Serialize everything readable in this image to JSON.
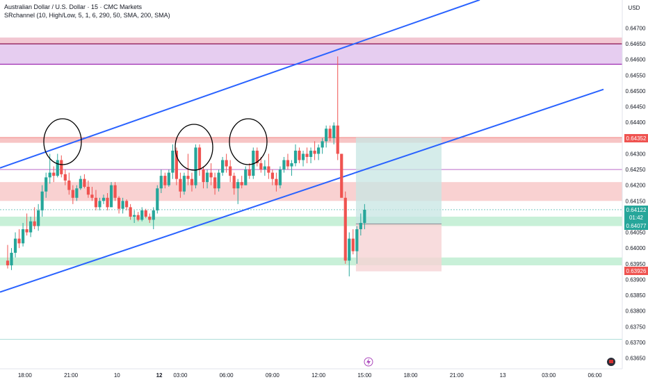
{
  "header": {
    "symbol_line": "Australian Dollar / U.S. Dollar · 15 · CMC Markets",
    "indicator_line": "SRchannel (10, High/Low, 5, 1, 6, 290, 50, SMA, 200, SMA)",
    "currency_label": "USD"
  },
  "price_tags": {
    "level_1": "0.64352",
    "last_price": "0.64122",
    "countdown": "01:42",
    "level_2": "0.64077",
    "level_3": "0.63926"
  },
  "footer": {
    "timeframe_icon": "lightning-icon",
    "settings_icon": "flag-icon"
  },
  "colors": {
    "up": "#26a69a",
    "down": "#ef5350",
    "channel": "#2962ff",
    "resistance_zone": "#f7c5c5",
    "support_zone": "#c8f0d8",
    "purple_zone": "#e6cdf0",
    "purple_line": "#9c27b0",
    "long_target": "#c7e6e3",
    "long_stop": "#f6d3d4"
  },
  "chart_data": {
    "type": "candlestick",
    "y_axis": {
      "ticks": [
        "0.64700",
        "0.64650",
        "0.64600",
        "0.64550",
        "0.64500",
        "0.64450",
        "0.64400",
        "0.64350",
        "0.64300",
        "0.64250",
        "0.64200",
        "0.64150",
        "0.64100",
        "0.64050",
        "0.64000",
        "0.63950",
        "0.63900",
        "0.63850",
        "0.63800",
        "0.63750",
        "0.63700",
        "0.63650"
      ],
      "range": [
        0.6364,
        0.6474
      ]
    },
    "x_axis": {
      "ticks": [
        {
          "label": "18:00",
          "bold": false,
          "bar": 4.5
        },
        {
          "label": "21:00",
          "bold": false,
          "bar": 16.5
        },
        {
          "label": "10",
          "bold": false,
          "bar": 28.5
        },
        {
          "label": "12",
          "bold": true,
          "bar": 39.5
        },
        {
          "label": "03:00",
          "bold": false,
          "bar": 45
        },
        {
          "label": "06:00",
          "bold": false,
          "bar": 57
        },
        {
          "label": "09:00",
          "bold": false,
          "bar": 69
        },
        {
          "label": "12:00",
          "bold": false,
          "bar": 81
        },
        {
          "label": "15:00",
          "bold": false,
          "bar": 93
        },
        {
          "label": "18:00",
          "bold": false,
          "bar": 105
        },
        {
          "label": "21:00",
          "bold": false,
          "bar": 117
        },
        {
          "label": "13",
          "bold": false,
          "bar": 129
        },
        {
          "label": "03:00",
          "bold": false,
          "bar": 141
        },
        {
          "label": "06:00",
          "bold": false,
          "bar": 153
        }
      ]
    },
    "candles_ohlc": [
      [
        0.6396,
        0.6401,
        0.63935,
        0.63945
      ],
      [
        0.63945,
        0.64,
        0.6393,
        0.63985
      ],
      [
        0.63985,
        0.6405,
        0.6397,
        0.6403
      ],
      [
        0.6403,
        0.6406,
        0.64,
        0.64015
      ],
      [
        0.64015,
        0.6408,
        0.64005,
        0.6406
      ],
      [
        0.6406,
        0.6411,
        0.6404,
        0.6405
      ],
      [
        0.6405,
        0.641,
        0.64035,
        0.64085
      ],
      [
        0.64085,
        0.6413,
        0.6406,
        0.6407
      ],
      [
        0.6407,
        0.6414,
        0.64055,
        0.6412
      ],
      [
        0.6412,
        0.642,
        0.641,
        0.6418
      ],
      [
        0.6418,
        0.6424,
        0.6416,
        0.64225
      ],
      [
        0.64225,
        0.643,
        0.64205,
        0.6424
      ],
      [
        0.6424,
        0.6426,
        0.6421,
        0.6423
      ],
      [
        0.6423,
        0.643,
        0.64225,
        0.6428
      ],
      [
        0.6428,
        0.64295,
        0.64225,
        0.64235
      ],
      [
        0.64235,
        0.6425,
        0.642,
        0.64215
      ],
      [
        0.64215,
        0.6424,
        0.6417,
        0.64185
      ],
      [
        0.64185,
        0.642,
        0.6414,
        0.6416
      ],
      [
        0.6416,
        0.642,
        0.6415,
        0.6419
      ],
      [
        0.6419,
        0.6423,
        0.64185,
        0.6422
      ],
      [
        0.6422,
        0.64235,
        0.6419,
        0.64195
      ],
      [
        0.64195,
        0.64215,
        0.6416,
        0.6417
      ],
      [
        0.6417,
        0.64195,
        0.6415,
        0.6416
      ],
      [
        0.6416,
        0.64185,
        0.6412,
        0.6413
      ],
      [
        0.6413,
        0.6416,
        0.6412,
        0.6415
      ],
      [
        0.6415,
        0.6417,
        0.6414,
        0.6416
      ],
      [
        0.6416,
        0.64175,
        0.6412,
        0.6413
      ],
      [
        0.6413,
        0.6421,
        0.6413,
        0.642
      ],
      [
        0.642,
        0.6421,
        0.6415,
        0.6416
      ],
      [
        0.6416,
        0.64165,
        0.6411,
        0.64125
      ],
      [
        0.64125,
        0.6416,
        0.6411,
        0.6415
      ],
      [
        0.6415,
        0.64155,
        0.6412,
        0.6413
      ],
      [
        0.6413,
        0.6414,
        0.6409,
        0.641
      ],
      [
        0.641,
        0.6412,
        0.6408,
        0.64105
      ],
      [
        0.64105,
        0.64115,
        0.64085,
        0.6409
      ],
      [
        0.6409,
        0.6413,
        0.64085,
        0.6412
      ],
      [
        0.6412,
        0.64125,
        0.64095,
        0.641
      ],
      [
        0.641,
        0.6411,
        0.6408,
        0.6409
      ],
      [
        0.6409,
        0.6413,
        0.6406,
        0.6412
      ],
      [
        0.6412,
        0.642,
        0.6411,
        0.6419
      ],
      [
        0.6419,
        0.6425,
        0.64175,
        0.6423
      ],
      [
        0.6423,
        0.6424,
        0.6419,
        0.642
      ],
      [
        0.642,
        0.6425,
        0.64195,
        0.6424
      ],
      [
        0.6424,
        0.6433,
        0.6422,
        0.6431
      ],
      [
        0.6431,
        0.6432,
        0.642,
        0.6422
      ],
      [
        0.6422,
        0.6424,
        0.6416,
        0.6418
      ],
      [
        0.6418,
        0.6424,
        0.6417,
        0.6423
      ],
      [
        0.6423,
        0.643,
        0.642,
        0.6422
      ],
      [
        0.6422,
        0.6424,
        0.6418,
        0.642
      ],
      [
        0.642,
        0.6433,
        0.6419,
        0.6432
      ],
      [
        0.6432,
        0.6433,
        0.6423,
        0.6425
      ],
      [
        0.6425,
        0.6426,
        0.6419,
        0.6421
      ],
      [
        0.6421,
        0.6425,
        0.6419,
        0.6424
      ],
      [
        0.6424,
        0.6427,
        0.642,
        0.64225
      ],
      [
        0.64225,
        0.6424,
        0.6417,
        0.6419
      ],
      [
        0.6419,
        0.6425,
        0.6418,
        0.6424
      ],
      [
        0.6424,
        0.6429,
        0.6423,
        0.6428
      ],
      [
        0.6428,
        0.643,
        0.6424,
        0.6426
      ],
      [
        0.6426,
        0.6428,
        0.6421,
        0.6423
      ],
      [
        0.6423,
        0.6424,
        0.6417,
        0.6419
      ],
      [
        0.6419,
        0.6422,
        0.6414,
        0.6421
      ],
      [
        0.6421,
        0.6423,
        0.6419,
        0.642
      ],
      [
        0.642,
        0.6426,
        0.642,
        0.6425
      ],
      [
        0.6425,
        0.6427,
        0.6422,
        0.6423
      ],
      [
        0.6423,
        0.6432,
        0.6422,
        0.6431
      ],
      [
        0.6431,
        0.6432,
        0.6426,
        0.6427
      ],
      [
        0.6427,
        0.6429,
        0.6424,
        0.6425
      ],
      [
        0.6425,
        0.6428,
        0.6423,
        0.6426
      ],
      [
        0.6426,
        0.643,
        0.6422,
        0.6424
      ],
      [
        0.6424,
        0.6425,
        0.642,
        0.6422
      ],
      [
        0.6422,
        0.6424,
        0.6418,
        0.642
      ],
      [
        0.642,
        0.6426,
        0.6419,
        0.6425
      ],
      [
        0.6425,
        0.6429,
        0.6424,
        0.6428
      ],
      [
        0.6428,
        0.643,
        0.6425,
        0.6426
      ],
      [
        0.6426,
        0.6428,
        0.6423,
        0.6427
      ],
      [
        0.6427,
        0.6433,
        0.6426,
        0.6431
      ],
      [
        0.6431,
        0.6432,
        0.6427,
        0.6428
      ],
      [
        0.6428,
        0.6431,
        0.6426,
        0.643
      ],
      [
        0.643,
        0.6432,
        0.6427,
        0.6429
      ],
      [
        0.6429,
        0.6432,
        0.6427,
        0.6431
      ],
      [
        0.6431,
        0.6434,
        0.6428,
        0.643
      ],
      [
        0.643,
        0.6433,
        0.6428,
        0.6432
      ],
      [
        0.6432,
        0.6435,
        0.643,
        0.6434
      ],
      [
        0.6434,
        0.6439,
        0.6432,
        0.6438
      ],
      [
        0.6438,
        0.6439,
        0.6434,
        0.6435
      ],
      [
        0.6435,
        0.644,
        0.6433,
        0.6439
      ],
      [
        0.6439,
        0.6461,
        0.6428,
        0.643
      ],
      [
        0.643,
        0.643,
        0.6418,
        0.6416
      ],
      [
        0.6416,
        0.6418,
        0.6395,
        0.6396
      ],
      [
        0.6396,
        0.6405,
        0.6391,
        0.6403
      ],
      [
        0.6403,
        0.6406,
        0.6398,
        0.6399
      ],
      [
        0.6399,
        0.6407,
        0.6395,
        0.6406
      ],
      [
        0.6406,
        0.6411,
        0.6404,
        0.6408
      ],
      [
        0.6408,
        0.6414,
        0.6406,
        0.64122
      ]
    ]
  }
}
